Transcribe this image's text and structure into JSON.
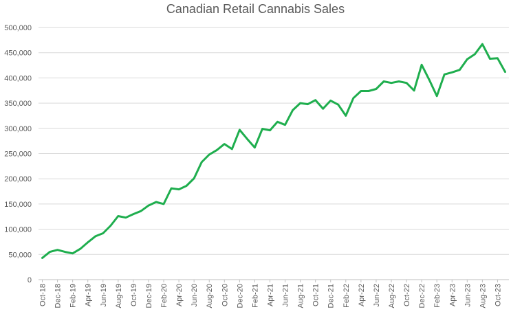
{
  "chart_data": {
    "type": "line",
    "title": "Canadian Retail Cannabis Sales",
    "xlabel": "",
    "ylabel": "",
    "ylim": [
      0,
      500000
    ],
    "yticks": [
      0,
      50000,
      100000,
      150000,
      200000,
      250000,
      300000,
      350000,
      400000,
      450000,
      500000
    ],
    "ytick_labels": [
      "0",
      "50,000",
      "100,000",
      "150,000",
      "200,000",
      "250,000",
      "300,000",
      "350,000",
      "400,000",
      "450,000",
      "500,000"
    ],
    "x": [
      "Oct-18",
      "Nov-18",
      "Dec-18",
      "Jan-19",
      "Feb-19",
      "Mar-19",
      "Apr-19",
      "May-19",
      "Jun-19",
      "Jul-19",
      "Aug-19",
      "Sep-19",
      "Oct-19",
      "Nov-19",
      "Dec-19",
      "Jan-20",
      "Feb-20",
      "Mar-20",
      "Apr-20",
      "May-20",
      "Jun-20",
      "Jul-20",
      "Aug-20",
      "Sep-20",
      "Oct-20",
      "Nov-20",
      "Dec-20",
      "Jan-21",
      "Feb-21",
      "Mar-21",
      "Apr-21",
      "May-21",
      "Jun-21",
      "Jul-21",
      "Aug-21",
      "Sep-21",
      "Oct-21",
      "Nov-21",
      "Dec-21",
      "Jan-22",
      "Feb-22",
      "Mar-22",
      "Apr-22",
      "May-22",
      "Jun-22",
      "Jul-22",
      "Aug-22",
      "Sep-22",
      "Oct-22",
      "Nov-22",
      "Dec-22",
      "Jan-23",
      "Feb-23",
      "Mar-23",
      "Apr-23",
      "May-23",
      "Jun-23",
      "Jul-23",
      "Aug-23",
      "Sep-23",
      "Oct-23",
      "Nov-23"
    ],
    "x_tick_labels_shown": [
      "Oct-18",
      "Dec-18",
      "Feb-19",
      "Apr-19",
      "Jun-19",
      "Aug-19",
      "Oct-19",
      "Dec-19",
      "Feb-20",
      "Apr-20",
      "Jun-20",
      "Aug-20",
      "Oct-20",
      "Dec-20",
      "Feb-21",
      "Apr-21",
      "Jun-21",
      "Aug-21",
      "Oct-21",
      "Dec-21",
      "Feb-22",
      "Apr-22",
      "Jun-22",
      "Aug-22",
      "Oct-22",
      "Dec-22",
      "Feb-23",
      "Apr-23",
      "Jun-23",
      "Aug-23",
      "Oct-23"
    ],
    "series": [
      {
        "color": "#1fae4e",
        "values": [
          43000,
          55000,
          59000,
          55000,
          52000,
          61000,
          74000,
          86000,
          92000,
          107000,
          126000,
          123000,
          130000,
          136000,
          147000,
          154000,
          150000,
          181000,
          179000,
          186000,
          201000,
          233000,
          248000,
          257000,
          269000,
          259000,
          297000,
          279000,
          262000,
          299000,
          296000,
          313000,
          307000,
          336000,
          350000,
          348000,
          356000,
          339000,
          355000,
          347000,
          325000,
          360000,
          374000,
          374000,
          378000,
          393000,
          390000,
          393000,
          390000,
          375000,
          426000,
          396000,
          364000,
          407000,
          411000,
          416000,
          437000,
          447000,
          467000,
          438000,
          439000,
          412000
        ]
      }
    ],
    "grid": true,
    "legend": "none"
  }
}
